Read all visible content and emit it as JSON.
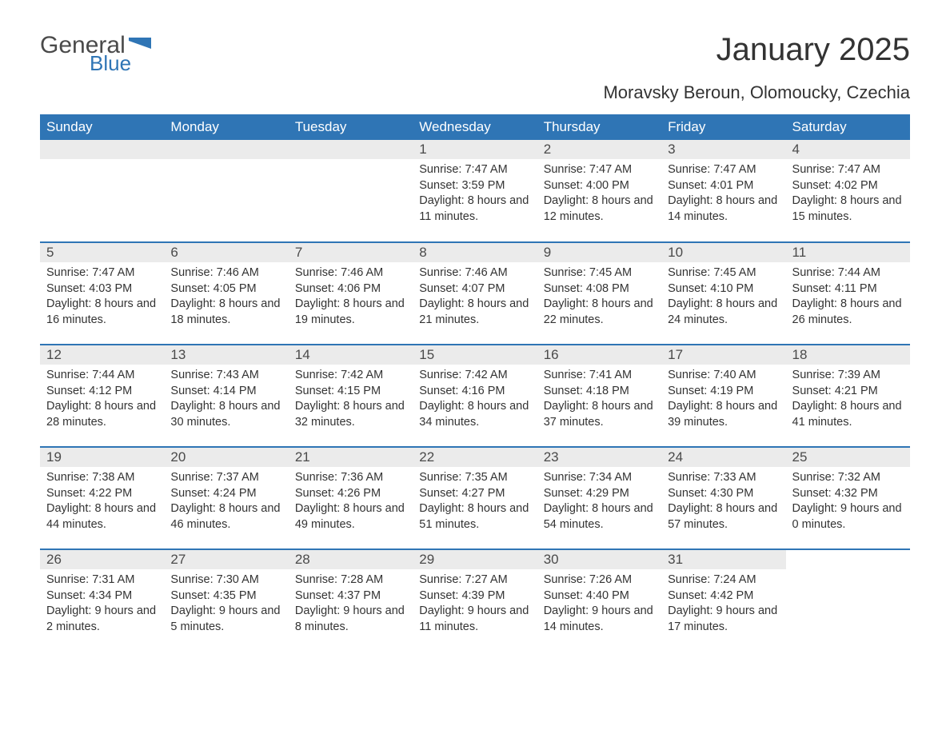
{
  "logo": {
    "text1": "General",
    "text2": "Blue",
    "flag_color": "#2f75b5"
  },
  "title": "January 2025",
  "subtitle": "Moravsky Beroun, Olomoucky, Czechia",
  "colors": {
    "header_bg": "#2f75b5",
    "header_text": "#ffffff",
    "daynum_bg": "#ebebeb",
    "text": "#333333",
    "border": "#2f75b5",
    "page_bg": "#ffffff"
  },
  "typography": {
    "title_fontsize": 40,
    "subtitle_fontsize": 22,
    "header_fontsize": 17,
    "daynum_fontsize": 17,
    "body_fontsize": 14.5
  },
  "layout": {
    "columns": 7,
    "rows": 5,
    "col_width_pct": 14.2857
  },
  "day_headers": [
    "Sunday",
    "Monday",
    "Tuesday",
    "Wednesday",
    "Thursday",
    "Friday",
    "Saturday"
  ],
  "weeks": [
    [
      null,
      null,
      null,
      {
        "n": "1",
        "sunrise": "Sunrise: 7:47 AM",
        "sunset": "Sunset: 3:59 PM",
        "daylight": "Daylight: 8 hours and 11 minutes."
      },
      {
        "n": "2",
        "sunrise": "Sunrise: 7:47 AM",
        "sunset": "Sunset: 4:00 PM",
        "daylight": "Daylight: 8 hours and 12 minutes."
      },
      {
        "n": "3",
        "sunrise": "Sunrise: 7:47 AM",
        "sunset": "Sunset: 4:01 PM",
        "daylight": "Daylight: 8 hours and 14 minutes."
      },
      {
        "n": "4",
        "sunrise": "Sunrise: 7:47 AM",
        "sunset": "Sunset: 4:02 PM",
        "daylight": "Daylight: 8 hours and 15 minutes."
      }
    ],
    [
      {
        "n": "5",
        "sunrise": "Sunrise: 7:47 AM",
        "sunset": "Sunset: 4:03 PM",
        "daylight": "Daylight: 8 hours and 16 minutes."
      },
      {
        "n": "6",
        "sunrise": "Sunrise: 7:46 AM",
        "sunset": "Sunset: 4:05 PM",
        "daylight": "Daylight: 8 hours and 18 minutes."
      },
      {
        "n": "7",
        "sunrise": "Sunrise: 7:46 AM",
        "sunset": "Sunset: 4:06 PM",
        "daylight": "Daylight: 8 hours and 19 minutes."
      },
      {
        "n": "8",
        "sunrise": "Sunrise: 7:46 AM",
        "sunset": "Sunset: 4:07 PM",
        "daylight": "Daylight: 8 hours and 21 minutes."
      },
      {
        "n": "9",
        "sunrise": "Sunrise: 7:45 AM",
        "sunset": "Sunset: 4:08 PM",
        "daylight": "Daylight: 8 hours and 22 minutes."
      },
      {
        "n": "10",
        "sunrise": "Sunrise: 7:45 AM",
        "sunset": "Sunset: 4:10 PM",
        "daylight": "Daylight: 8 hours and 24 minutes."
      },
      {
        "n": "11",
        "sunrise": "Sunrise: 7:44 AM",
        "sunset": "Sunset: 4:11 PM",
        "daylight": "Daylight: 8 hours and 26 minutes."
      }
    ],
    [
      {
        "n": "12",
        "sunrise": "Sunrise: 7:44 AM",
        "sunset": "Sunset: 4:12 PM",
        "daylight": "Daylight: 8 hours and 28 minutes."
      },
      {
        "n": "13",
        "sunrise": "Sunrise: 7:43 AM",
        "sunset": "Sunset: 4:14 PM",
        "daylight": "Daylight: 8 hours and 30 minutes."
      },
      {
        "n": "14",
        "sunrise": "Sunrise: 7:42 AM",
        "sunset": "Sunset: 4:15 PM",
        "daylight": "Daylight: 8 hours and 32 minutes."
      },
      {
        "n": "15",
        "sunrise": "Sunrise: 7:42 AM",
        "sunset": "Sunset: 4:16 PM",
        "daylight": "Daylight: 8 hours and 34 minutes."
      },
      {
        "n": "16",
        "sunrise": "Sunrise: 7:41 AM",
        "sunset": "Sunset: 4:18 PM",
        "daylight": "Daylight: 8 hours and 37 minutes."
      },
      {
        "n": "17",
        "sunrise": "Sunrise: 7:40 AM",
        "sunset": "Sunset: 4:19 PM",
        "daylight": "Daylight: 8 hours and 39 minutes."
      },
      {
        "n": "18",
        "sunrise": "Sunrise: 7:39 AM",
        "sunset": "Sunset: 4:21 PM",
        "daylight": "Daylight: 8 hours and 41 minutes."
      }
    ],
    [
      {
        "n": "19",
        "sunrise": "Sunrise: 7:38 AM",
        "sunset": "Sunset: 4:22 PM",
        "daylight": "Daylight: 8 hours and 44 minutes."
      },
      {
        "n": "20",
        "sunrise": "Sunrise: 7:37 AM",
        "sunset": "Sunset: 4:24 PM",
        "daylight": "Daylight: 8 hours and 46 minutes."
      },
      {
        "n": "21",
        "sunrise": "Sunrise: 7:36 AM",
        "sunset": "Sunset: 4:26 PM",
        "daylight": "Daylight: 8 hours and 49 minutes."
      },
      {
        "n": "22",
        "sunrise": "Sunrise: 7:35 AM",
        "sunset": "Sunset: 4:27 PM",
        "daylight": "Daylight: 8 hours and 51 minutes."
      },
      {
        "n": "23",
        "sunrise": "Sunrise: 7:34 AM",
        "sunset": "Sunset: 4:29 PM",
        "daylight": "Daylight: 8 hours and 54 minutes."
      },
      {
        "n": "24",
        "sunrise": "Sunrise: 7:33 AM",
        "sunset": "Sunset: 4:30 PM",
        "daylight": "Daylight: 8 hours and 57 minutes."
      },
      {
        "n": "25",
        "sunrise": "Sunrise: 7:32 AM",
        "sunset": "Sunset: 4:32 PM",
        "daylight": "Daylight: 9 hours and 0 minutes."
      }
    ],
    [
      {
        "n": "26",
        "sunrise": "Sunrise: 7:31 AM",
        "sunset": "Sunset: 4:34 PM",
        "daylight": "Daylight: 9 hours and 2 minutes."
      },
      {
        "n": "27",
        "sunrise": "Sunrise: 7:30 AM",
        "sunset": "Sunset: 4:35 PM",
        "daylight": "Daylight: 9 hours and 5 minutes."
      },
      {
        "n": "28",
        "sunrise": "Sunrise: 7:28 AM",
        "sunset": "Sunset: 4:37 PM",
        "daylight": "Daylight: 9 hours and 8 minutes."
      },
      {
        "n": "29",
        "sunrise": "Sunrise: 7:27 AM",
        "sunset": "Sunset: 4:39 PM",
        "daylight": "Daylight: 9 hours and 11 minutes."
      },
      {
        "n": "30",
        "sunrise": "Sunrise: 7:26 AM",
        "sunset": "Sunset: 4:40 PM",
        "daylight": "Daylight: 9 hours and 14 minutes."
      },
      {
        "n": "31",
        "sunrise": "Sunrise: 7:24 AM",
        "sunset": "Sunset: 4:42 PM",
        "daylight": "Daylight: 9 hours and 17 minutes."
      },
      null
    ]
  ]
}
